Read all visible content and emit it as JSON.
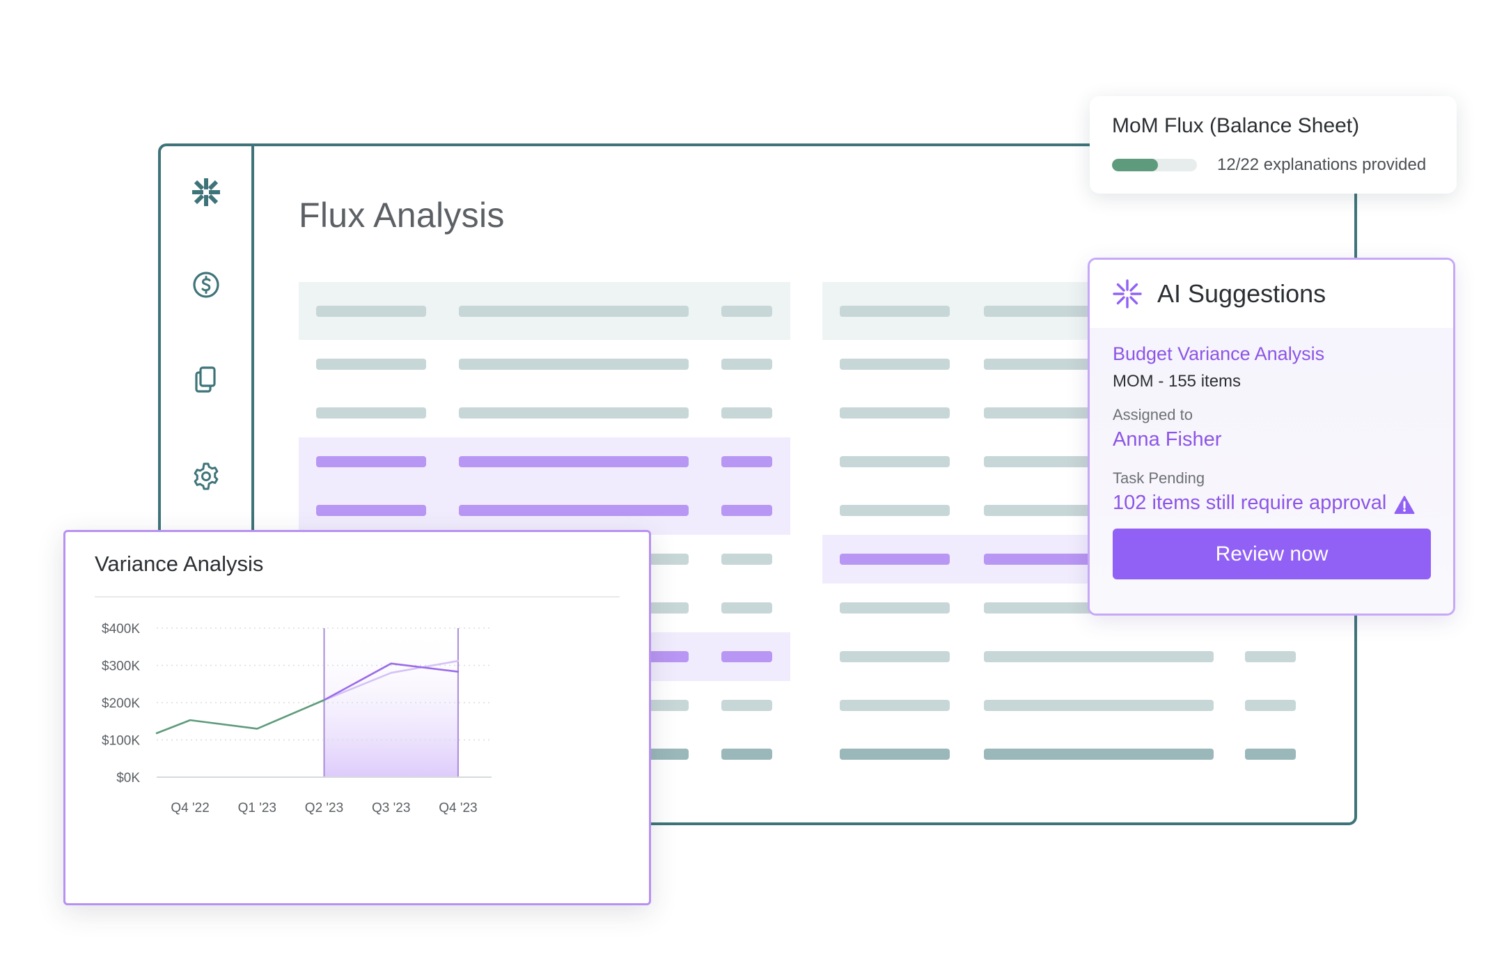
{
  "app": {
    "page_title": "Flux Analysis",
    "sidebar_icons": [
      "logo-icon",
      "dollar-icon",
      "documents-icon",
      "gear-icon"
    ],
    "accent_color": "#3e7479"
  },
  "mom_card": {
    "title": "MoM Flux (Balance Sheet)",
    "status": "12/22 explanations provided",
    "progress_fraction": 0.545,
    "progress_color": "#5e9b7c"
  },
  "ai_card": {
    "title": "AI Suggestions",
    "task_name": "Budget Variance Analysis",
    "task_detail": "MOM - 155 items",
    "assigned_label": "Assigned to",
    "assignee": "Anna Fisher",
    "pending_label": "Task Pending",
    "pending_text": "102 items still require approval",
    "button_label": "Review now",
    "accent_color": "#9161f6"
  },
  "chart_data": {
    "type": "line",
    "title": "Variance Analysis",
    "categories": [
      "Q4 '22",
      "Q1 '23",
      "Q2 '23",
      "Q3 '23",
      "Q4 '23"
    ],
    "y_tick_labels": [
      "$400K",
      "$300K",
      "$200K",
      "$100K",
      "$0K"
    ],
    "ylim": [
      0,
      400000
    ],
    "xlim": [
      -0.5,
      4.5
    ],
    "series": [
      {
        "color": "#5e9b7c",
        "x": [
          -0.5,
          0.0,
          1.0,
          2.0
        ],
        "y": [
          118000,
          153000,
          130000,
          207000
        ]
      },
      {
        "color": "#9a6be9",
        "x": [
          2.0,
          3.0,
          4.0
        ],
        "y": [
          207000,
          305000,
          283000
        ]
      },
      {
        "color": "#d4c2f5",
        "x": [
          2.0,
          3.0,
          4.0
        ],
        "y": [
          207000,
          280000,
          312000
        ]
      }
    ],
    "highlight_range": [
      "Q2 '23",
      "Q4 '23"
    ],
    "grid": true
  }
}
